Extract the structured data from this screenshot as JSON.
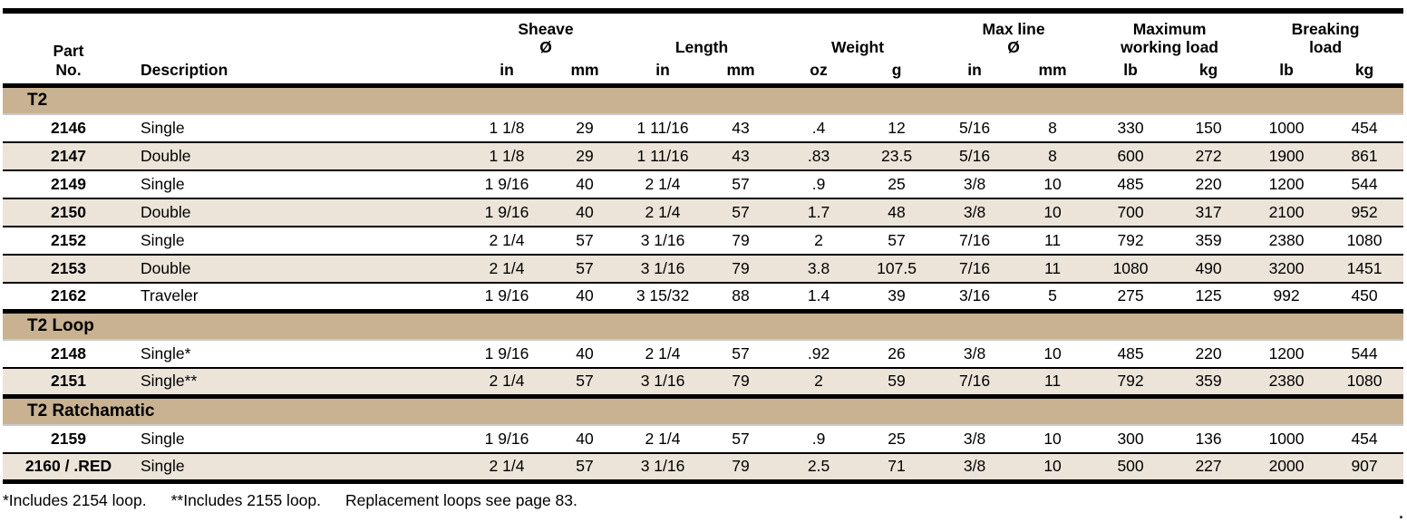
{
  "colors": {
    "section_band": "#c9b292",
    "row_alternate": "#ece4d9",
    "rule": "#000000",
    "band_underline": "#c9c9c9"
  },
  "header": {
    "part": [
      "Part",
      "No."
    ],
    "description": "Description",
    "groups": [
      {
        "name": "sheave-diameter",
        "lines": [
          "Sheave",
          "Ø"
        ]
      },
      {
        "name": "length",
        "lines": [
          "Length"
        ]
      },
      {
        "name": "weight",
        "lines": [
          "Weight"
        ]
      },
      {
        "name": "max-line-diameter",
        "lines": [
          "Max line",
          "Ø"
        ]
      },
      {
        "name": "max-working-load",
        "lines": [
          "Maximum",
          "working load"
        ]
      },
      {
        "name": "breaking-load",
        "lines": [
          "Breaking",
          "load"
        ]
      }
    ],
    "units": [
      "in",
      "mm",
      "in",
      "mm",
      "oz",
      "g",
      "in",
      "mm",
      "lb",
      "kg",
      "lb",
      "kg"
    ]
  },
  "sections": [
    {
      "title": "T2",
      "rows": [
        {
          "part": "2146",
          "description": "Single",
          "values": [
            "1 1/8",
            "29",
            "1 11/16",
            "43",
            ".4",
            "12",
            "5/16",
            "8",
            "330",
            "150",
            "1000",
            "454"
          ]
        },
        {
          "part": "2147",
          "description": "Double",
          "values": [
            "1 1/8",
            "29",
            "1 11/16",
            "43",
            ".83",
            "23.5",
            "5/16",
            "8",
            "600",
            "272",
            "1900",
            "861"
          ]
        },
        {
          "part": "2149",
          "description": "Single",
          "values": [
            "1 9/16",
            "40",
            "2 1/4",
            "57",
            ".9",
            "25",
            "3/8",
            "10",
            "485",
            "220",
            "1200",
            "544"
          ]
        },
        {
          "part": "2150",
          "description": "Double",
          "values": [
            "1 9/16",
            "40",
            "2 1/4",
            "57",
            "1.7",
            "48",
            "3/8",
            "10",
            "700",
            "317",
            "2100",
            "952"
          ]
        },
        {
          "part": "2152",
          "description": "Single",
          "values": [
            "2 1/4",
            "57",
            "3 1/16",
            "79",
            "2",
            "57",
            "7/16",
            "11",
            "792",
            "359",
            "2380",
            "1080"
          ]
        },
        {
          "part": "2153",
          "description": "Double",
          "values": [
            "2 1/4",
            "57",
            "3 1/16",
            "79",
            "3.8",
            "107.5",
            "7/16",
            "11",
            "1080",
            "490",
            "3200",
            "1451"
          ]
        },
        {
          "part": "2162",
          "description": "Traveler",
          "values": [
            "1 9/16",
            "40",
            "3 15/32",
            "88",
            "1.4",
            "39",
            "3/16",
            "5",
            "275",
            "125",
            "992",
            "450"
          ]
        }
      ]
    },
    {
      "title": "T2 Loop",
      "rows": [
        {
          "part": "2148",
          "description": "Single*",
          "values": [
            "1 9/16",
            "40",
            "2 1/4",
            "57",
            ".92",
            "26",
            "3/8",
            "10",
            "485",
            "220",
            "1200",
            "544"
          ]
        },
        {
          "part": "2151",
          "description": "Single**",
          "values": [
            "2 1/4",
            "57",
            "3 1/16",
            "79",
            "2",
            "59",
            "7/16",
            "11",
            "792",
            "359",
            "2380",
            "1080"
          ]
        }
      ]
    },
    {
      "title": "T2 Ratchamatic",
      "rows": [
        {
          "part": "2159",
          "description": "Single",
          "values": [
            "1 9/16",
            "40",
            "2 1/4",
            "57",
            ".9",
            "25",
            "3/8",
            "10",
            "300",
            "136",
            "1000",
            "454"
          ]
        },
        {
          "part": "2160 / .RED",
          "description": "Single",
          "values": [
            "2 1/4",
            "57",
            "3 1/16",
            "79",
            "2.5",
            "71",
            "3/8",
            "10",
            "500",
            "227",
            "2000",
            "907"
          ]
        }
      ]
    }
  ],
  "footnotes": [
    "*Includes 2154 loop.",
    "**Includes 2155 loop.",
    "Replacement loops see page 83."
  ],
  "trailing_period": "."
}
